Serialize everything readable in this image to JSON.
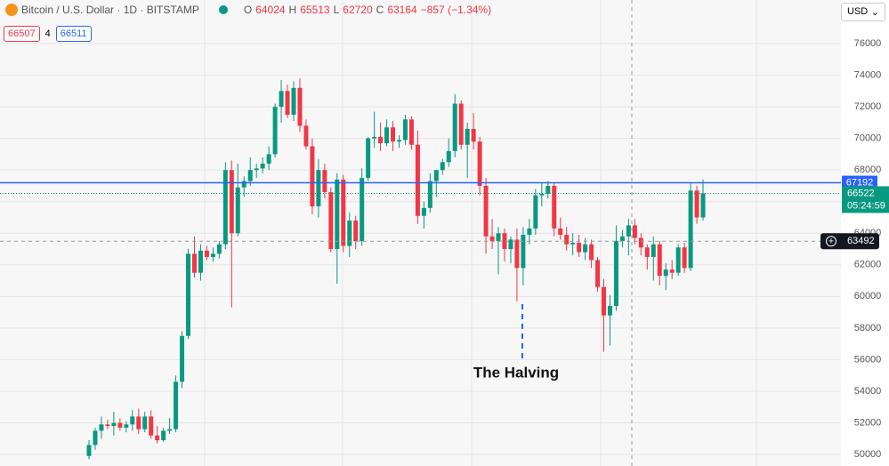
{
  "header": {
    "symbol": "Bitcoin / U.S. Dollar · 1D · BITSTAMP",
    "open_label": "O",
    "open": "64024",
    "high_label": "H",
    "high": "65513",
    "low_label": "L",
    "low": "62720",
    "close_label": "C",
    "close": "63164",
    "change": "−857 (−1.34%)",
    "sell": "66507",
    "spread": "4",
    "buy": "66511",
    "currency": "USD"
  },
  "chart_data": {
    "type": "candlestick",
    "up_color": "#089981",
    "down_color": "#f23645",
    "ylim": [
      49270,
      78760
    ],
    "yticks": [
      50000,
      52000,
      54000,
      56000,
      58000,
      60000,
      62000,
      64000,
      66000,
      68000,
      70000,
      72000,
      74000,
      76000
    ],
    "grid": true,
    "annotation": "The Halving",
    "price_line": 67192,
    "countdown": "05:24:59",
    "crosshair_price": 63492,
    "ohlc": [
      [
        49900,
        50900,
        49700,
        50600
      ],
      [
        50600,
        51700,
        50300,
        51500
      ],
      [
        51500,
        52400,
        51000,
        51900
      ],
      [
        51900,
        52200,
        51600,
        51800
      ],
      [
        51800,
        52700,
        51200,
        52000
      ],
      [
        52000,
        52300,
        51500,
        51700
      ],
      [
        51700,
        52100,
        51400,
        51900
      ],
      [
        51900,
        52800,
        51500,
        52400
      ],
      [
        52400,
        52900,
        51300,
        51600
      ],
      [
        51600,
        52700,
        51400,
        52400
      ],
      [
        52400,
        52800,
        51000,
        51200
      ],
      [
        51200,
        51800,
        50700,
        50900
      ],
      [
        50900,
        51700,
        50800,
        51500
      ],
      [
        51500,
        52300,
        51300,
        51600
      ],
      [
        51600,
        55000,
        51400,
        54600
      ],
      [
        54600,
        57800,
        54200,
        57500
      ],
      [
        57500,
        63000,
        57300,
        62700
      ],
      [
        62700,
        63800,
        61200,
        61500
      ],
      [
        61500,
        63300,
        61000,
        62900
      ],
      [
        62900,
        63200,
        62300,
        62500
      ],
      [
        62500,
        63100,
        62200,
        62700
      ],
      [
        62700,
        63500,
        62400,
        63300
      ],
      [
        63300,
        68500,
        63000,
        68000
      ],
      [
        68000,
        68600,
        59300,
        64000
      ],
      [
        64000,
        68400,
        63800,
        66900
      ],
      [
        66900,
        67600,
        66300,
        67300
      ],
      [
        67300,
        68800,
        67000,
        68000
      ],
      [
        68000,
        68400,
        67500,
        68100
      ],
      [
        68100,
        68800,
        67800,
        68400
      ],
      [
        68400,
        69500,
        68000,
        69000
      ],
      [
        69000,
        72200,
        68800,
        72000
      ],
      [
        72000,
        73700,
        71000,
        73000
      ],
      [
        73000,
        73400,
        71300,
        71500
      ],
      [
        71500,
        73600,
        71100,
        73200
      ],
      [
        73200,
        73800,
        70400,
        70800
      ],
      [
        70800,
        71200,
        69300,
        69500
      ],
      [
        69500,
        70000,
        65200,
        65700
      ],
      [
        65700,
        68700,
        65000,
        68000
      ],
      [
        68000,
        68400,
        66200,
        66600
      ],
      [
        66600,
        66900,
        62800,
        63000
      ],
      [
        63000,
        67800,
        60800,
        67400
      ],
      [
        67400,
        67700,
        62800,
        63200
      ],
      [
        63200,
        65300,
        62500,
        64800
      ],
      [
        64800,
        65100,
        63000,
        63500
      ],
      [
        63500,
        68100,
        63200,
        67500
      ],
      [
        67500,
        70100,
        67300,
        70000
      ],
      [
        70000,
        71700,
        69400,
        70100
      ],
      [
        70100,
        71000,
        69200,
        69700
      ],
      [
        69700,
        71200,
        69500,
        70700
      ],
      [
        70700,
        71100,
        69200,
        69800
      ],
      [
        69800,
        70200,
        69400,
        69900
      ],
      [
        69900,
        71500,
        69600,
        71200
      ],
      [
        71200,
        71400,
        69300,
        69600
      ],
      [
        69600,
        70500,
        64600,
        65100
      ],
      [
        65100,
        66000,
        64300,
        65600
      ],
      [
        65600,
        67800,
        65300,
        67300
      ],
      [
        67300,
        68000,
        66300,
        68000
      ],
      [
        68000,
        68700,
        67700,
        68500
      ],
      [
        68500,
        70000,
        68200,
        69200
      ],
      [
        69200,
        72800,
        68800,
        72200
      ],
      [
        72200,
        72400,
        69300,
        69600
      ],
      [
        69600,
        71000,
        67500,
        70600
      ],
      [
        70600,
        71600,
        69300,
        69800
      ],
      [
        69800,
        70100,
        66400,
        67000
      ],
      [
        67000,
        67500,
        62700,
        63800
      ],
      [
        63800,
        64900,
        63000,
        63500
      ],
      [
        63500,
        64400,
        61400,
        64000
      ],
      [
        64000,
        64300,
        62200,
        63000
      ],
      [
        63000,
        63800,
        62100,
        63600
      ],
      [
        63600,
        64300,
        59700,
        61800
      ],
      [
        61800,
        64400,
        60700,
        63900
      ],
      [
        63900,
        64900,
        63300,
        64300
      ],
      [
        64300,
        66800,
        63900,
        66400
      ],
      [
        66400,
        67200,
        65700,
        66500
      ],
      [
        66500,
        67300,
        66200,
        67000
      ],
      [
        67000,
        67200,
        63800,
        64300
      ],
      [
        64300,
        65000,
        63600,
        63900
      ],
      [
        63900,
        64400,
        62900,
        63300
      ],
      [
        63300,
        64000,
        62600,
        63400
      ],
      [
        63400,
        63900,
        62500,
        62800
      ],
      [
        62800,
        63700,
        62300,
        63300
      ],
      [
        63300,
        63600,
        61800,
        62300
      ],
      [
        62300,
        62500,
        60300,
        60600
      ],
      [
        60600,
        61100,
        56500,
        58800
      ],
      [
        58800,
        60100,
        56900,
        59400
      ],
      [
        59400,
        64500,
        59100,
        63500
      ],
      [
        63500,
        64200,
        63100,
        63800
      ],
      [
        63800,
        64900,
        62600,
        64500
      ],
      [
        64500,
        64900,
        63300,
        63700
      ],
      [
        63700,
        64000,
        62600,
        63100
      ],
      [
        63100,
        63300,
        61700,
        62500
      ],
      [
        62500,
        63800,
        61000,
        63300
      ],
      [
        63300,
        63500,
        60700,
        61300
      ],
      [
        61300,
        62100,
        60400,
        61700
      ],
      [
        61700,
        62300,
        61100,
        61500
      ],
      [
        61500,
        63300,
        61300,
        63100
      ],
      [
        63100,
        63400,
        61500,
        61800
      ],
      [
        61800,
        67200,
        61600,
        66700
      ],
      [
        66700,
        67000,
        64600,
        65000
      ],
      [
        65000,
        67400,
        64800,
        66522
      ]
    ]
  }
}
